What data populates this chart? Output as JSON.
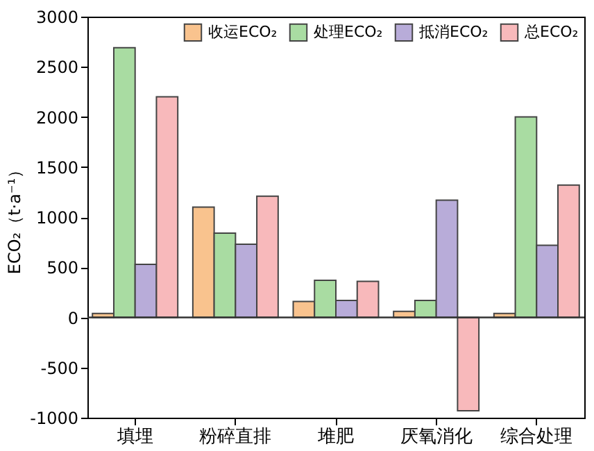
{
  "chart_data": {
    "type": "bar",
    "ylabel": "ECO₂（t·a⁻¹）",
    "categories": [
      "填埋",
      "粉碎直排",
      "堆肥",
      "厌氧消化",
      "综合处理"
    ],
    "series": [
      {
        "name": "收运ECO₂",
        "color": "#f9c38e",
        "values": [
          40,
          1100,
          160,
          60,
          40
        ]
      },
      {
        "name": "处理ECO₂",
        "color": "#a9dca2",
        "values": [
          2690,
          840,
          370,
          170,
          2000
        ]
      },
      {
        "name": "抵消ECO₂",
        "color": "#b8acd9",
        "values": [
          530,
          730,
          170,
          1170,
          720
        ]
      },
      {
        "name": "总ECO₂",
        "color": "#f8b9bb",
        "values": [
          2200,
          1210,
          360,
          -930,
          1320
        ]
      }
    ],
    "ylim": [
      -1000,
      3000
    ],
    "yticks": [
      -1000,
      -500,
      0,
      500,
      1000,
      1500,
      2000,
      2500,
      3000
    ],
    "ref_lines": [
      {
        "axis": "y",
        "value": 0,
        "color": "#333333"
      }
    ],
    "grid": false,
    "legend": "top right"
  }
}
